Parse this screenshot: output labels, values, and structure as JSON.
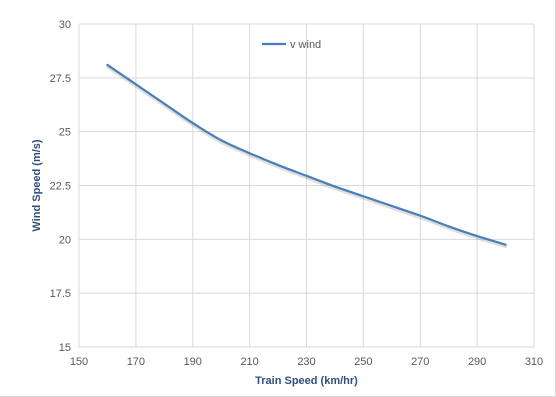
{
  "chart_data": {
    "type": "line",
    "xlabel": "Train Speed (km/hr)",
    "ylabel": "Wind Speed (m/s)",
    "xlim": [
      150,
      310
    ],
    "ylim": [
      15,
      30
    ],
    "x_ticks": [
      "150",
      "170",
      "190",
      "210",
      "230",
      "250",
      "270",
      "290",
      "310"
    ],
    "y_ticks": [
      "15",
      "17.5",
      "20",
      "22.5",
      "25",
      "27.5",
      "30"
    ],
    "grid": true,
    "legend_position": "top-center",
    "series": [
      {
        "name": "v wind",
        "color": "#4a7ebb",
        "x": [
          160,
          170,
          180,
          190,
          200,
          210,
          220,
          230,
          240,
          250,
          260,
          270,
          280,
          290,
          300
        ],
        "y": [
          28.1,
          27.2,
          26.3,
          25.4,
          24.6,
          24.0,
          23.45,
          22.95,
          22.45,
          22.0,
          21.55,
          21.1,
          20.6,
          20.15,
          19.75
        ]
      }
    ]
  }
}
